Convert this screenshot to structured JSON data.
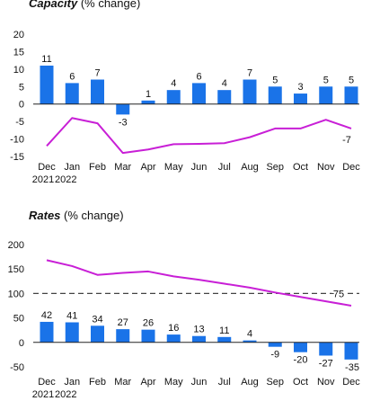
{
  "chart_data": [
    {
      "type": "bar",
      "title_bold": "Capacity",
      "title_rest": "(% change)",
      "categories": [
        "Dec",
        "Jan",
        "Feb",
        "Mar",
        "Apr",
        "May",
        "Jun",
        "Jul",
        "Aug",
        "Sep",
        "Oct",
        "Nov",
        "Dec"
      ],
      "year_labels": [
        "2021",
        "2022"
      ],
      "bar_values": [
        11,
        6,
        7,
        -3,
        1,
        4,
        6,
        4,
        7,
        5,
        3,
        5,
        5
      ],
      "line_values": [
        -12,
        -4,
        -5.5,
        -14,
        -13,
        -11.5,
        -11.4,
        -11.2,
        -9.5,
        -7,
        -7,
        -4.5,
        -7
      ],
      "line_label": "-7",
      "ylim": [
        -15,
        20
      ],
      "yticks": [
        "20",
        "15",
        "10",
        "5",
        "0",
        "-5",
        "-10",
        "-15"
      ],
      "grid": false,
      "bar_color": "#1a73e8",
      "line_color": "#c81fd6"
    },
    {
      "type": "bar",
      "title_bold": "Rates",
      "title_rest": "(% change)",
      "categories": [
        "Dec",
        "Jan",
        "Feb",
        "Mar",
        "Apr",
        "May",
        "Jun",
        "Jul",
        "Aug",
        "Sep",
        "Oct",
        "Nov",
        "Dec"
      ],
      "year_labels": [
        "2021",
        "2022"
      ],
      "bar_values": [
        42,
        41,
        34,
        27,
        26,
        16,
        13,
        11,
        4,
        -9,
        -20,
        -27,
        -35
      ],
      "line_values": [
        168,
        156,
        138,
        142,
        145,
        135,
        128,
        120,
        112,
        102,
        93,
        84,
        75
      ],
      "line_label": "75",
      "reference_line": 100,
      "ylim": [
        -50,
        200
      ],
      "yticks": [
        "200",
        "150",
        "100",
        "50",
        "0",
        "-50"
      ],
      "grid": false,
      "bar_color": "#1a73e8",
      "line_color": "#c81fd6"
    }
  ]
}
